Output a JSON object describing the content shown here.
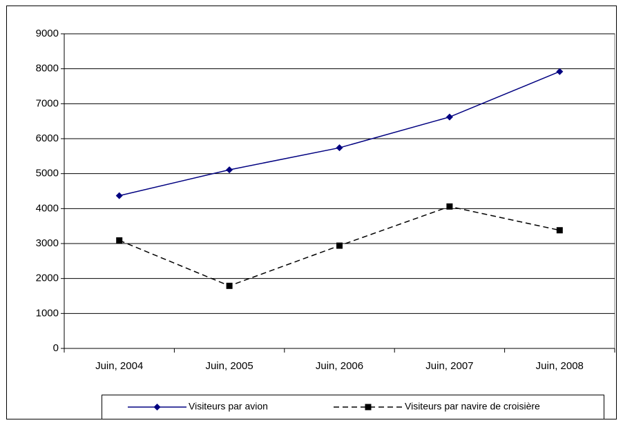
{
  "chart_data": {
    "type": "line",
    "categories": [
      "Juin, 2004",
      "Juin, 2005",
      "Juin, 2006",
      "Juin, 2007",
      "Juin, 2008"
    ],
    "series": [
      {
        "name": "Visiteurs par avion",
        "color": "#000080",
        "marker": "diamond",
        "line_style": "solid",
        "values": [
          4370,
          5110,
          5740,
          6620,
          7920
        ]
      },
      {
        "name": "Visiteurs par navire de croisière",
        "color": "#000000",
        "marker": "square",
        "line_style": "dashed",
        "values": [
          3090,
          1790,
          2940,
          4060,
          3380
        ]
      }
    ],
    "ylim": [
      0,
      9000
    ],
    "yticks": [
      0,
      1000,
      2000,
      3000,
      4000,
      5000,
      6000,
      7000,
      8000,
      9000
    ],
    "grid": true,
    "legend": "bottom"
  }
}
